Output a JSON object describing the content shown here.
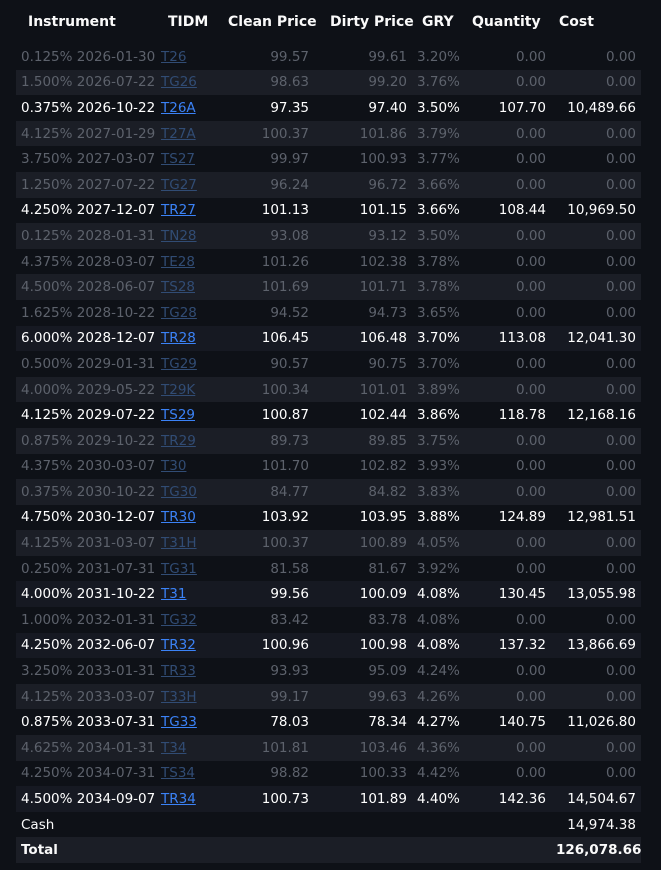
{
  "table": {
    "headers": {
      "instrument": "Instrument",
      "tidm": "TIDM",
      "clean_price": "Clean Price",
      "dirty_price": "Dirty Price",
      "gry": "GRY",
      "quantity": "Quantity",
      "cost": "Cost"
    },
    "rows": [
      {
        "instrument": "0.125% 2026-01-30",
        "tidm": "T26",
        "clean": "99.57",
        "dirty": "99.61",
        "gry": "3.20%",
        "qty": "0.00",
        "cost": "0.00",
        "held": false
      },
      {
        "instrument": "1.500% 2026-07-22",
        "tidm": "TG26",
        "clean": "98.63",
        "dirty": "99.20",
        "gry": "3.76%",
        "qty": "0.00",
        "cost": "0.00",
        "held": false
      },
      {
        "instrument": "0.375% 2026-10-22",
        "tidm": "T26A",
        "clean": "97.35",
        "dirty": "97.40",
        "gry": "3.50%",
        "qty": "107.70",
        "cost": "10,489.66",
        "held": true
      },
      {
        "instrument": "4.125% 2027-01-29",
        "tidm": "T27A",
        "clean": "100.37",
        "dirty": "101.86",
        "gry": "3.79%",
        "qty": "0.00",
        "cost": "0.00",
        "held": false
      },
      {
        "instrument": "3.750% 2027-03-07",
        "tidm": "TS27",
        "clean": "99.97",
        "dirty": "100.93",
        "gry": "3.77%",
        "qty": "0.00",
        "cost": "0.00",
        "held": false
      },
      {
        "instrument": "1.250% 2027-07-22",
        "tidm": "TG27",
        "clean": "96.24",
        "dirty": "96.72",
        "gry": "3.66%",
        "qty": "0.00",
        "cost": "0.00",
        "held": false
      },
      {
        "instrument": "4.250% 2027-12-07",
        "tidm": "TR27",
        "clean": "101.13",
        "dirty": "101.15",
        "gry": "3.66%",
        "qty": "108.44",
        "cost": "10,969.50",
        "held": true
      },
      {
        "instrument": "0.125% 2028-01-31",
        "tidm": "TN28",
        "clean": "93.08",
        "dirty": "93.12",
        "gry": "3.50%",
        "qty": "0.00",
        "cost": "0.00",
        "held": false
      },
      {
        "instrument": "4.375% 2028-03-07",
        "tidm": "TE28",
        "clean": "101.26",
        "dirty": "102.38",
        "gry": "3.78%",
        "qty": "0.00",
        "cost": "0.00",
        "held": false
      },
      {
        "instrument": "4.500% 2028-06-07",
        "tidm": "TS28",
        "clean": "101.69",
        "dirty": "101.71",
        "gry": "3.78%",
        "qty": "0.00",
        "cost": "0.00",
        "held": false
      },
      {
        "instrument": "1.625% 2028-10-22",
        "tidm": "TG28",
        "clean": "94.52",
        "dirty": "94.73",
        "gry": "3.65%",
        "qty": "0.00",
        "cost": "0.00",
        "held": false
      },
      {
        "instrument": "6.000% 2028-12-07",
        "tidm": "TR28",
        "clean": "106.45",
        "dirty": "106.48",
        "gry": "3.70%",
        "qty": "113.08",
        "cost": "12,041.30",
        "held": true
      },
      {
        "instrument": "0.500% 2029-01-31",
        "tidm": "TG29",
        "clean": "90.57",
        "dirty": "90.75",
        "gry": "3.70%",
        "qty": "0.00",
        "cost": "0.00",
        "held": false
      },
      {
        "instrument": "4.000% 2029-05-22",
        "tidm": "T29K",
        "clean": "100.34",
        "dirty": "101.01",
        "gry": "3.89%",
        "qty": "0.00",
        "cost": "0.00",
        "held": false
      },
      {
        "instrument": "4.125% 2029-07-22",
        "tidm": "TS29",
        "clean": "100.87",
        "dirty": "102.44",
        "gry": "3.86%",
        "qty": "118.78",
        "cost": "12,168.16",
        "held": true
      },
      {
        "instrument": "0.875% 2029-10-22",
        "tidm": "TR29",
        "clean": "89.73",
        "dirty": "89.85",
        "gry": "3.75%",
        "qty": "0.00",
        "cost": "0.00",
        "held": false
      },
      {
        "instrument": "4.375% 2030-03-07",
        "tidm": "T30",
        "clean": "101.70",
        "dirty": "102.82",
        "gry": "3.93%",
        "qty": "0.00",
        "cost": "0.00",
        "held": false
      },
      {
        "instrument": "0.375% 2030-10-22",
        "tidm": "TG30",
        "clean": "84.77",
        "dirty": "84.82",
        "gry": "3.83%",
        "qty": "0.00",
        "cost": "0.00",
        "held": false
      },
      {
        "instrument": "4.750% 2030-12-07",
        "tidm": "TR30",
        "clean": "103.92",
        "dirty": "103.95",
        "gry": "3.88%",
        "qty": "124.89",
        "cost": "12,981.51",
        "held": true
      },
      {
        "instrument": "4.125% 2031-03-07",
        "tidm": "T31H",
        "clean": "100.37",
        "dirty": "100.89",
        "gry": "4.05%",
        "qty": "0.00",
        "cost": "0.00",
        "held": false
      },
      {
        "instrument": "0.250% 2031-07-31",
        "tidm": "TG31",
        "clean": "81.58",
        "dirty": "81.67",
        "gry": "3.92%",
        "qty": "0.00",
        "cost": "0.00",
        "held": false
      },
      {
        "instrument": "4.000% 2031-10-22",
        "tidm": "T31",
        "clean": "99.56",
        "dirty": "100.09",
        "gry": "4.08%",
        "qty": "130.45",
        "cost": "13,055.98",
        "held": true
      },
      {
        "instrument": "1.000% 2032-01-31",
        "tidm": "TG32",
        "clean": "83.42",
        "dirty": "83.78",
        "gry": "4.08%",
        "qty": "0.00",
        "cost": "0.00",
        "held": false
      },
      {
        "instrument": "4.250% 2032-06-07",
        "tidm": "TR32",
        "clean": "100.96",
        "dirty": "100.98",
        "gry": "4.08%",
        "qty": "137.32",
        "cost": "13,866.69",
        "held": true
      },
      {
        "instrument": "3.250% 2033-01-31",
        "tidm": "TR33",
        "clean": "93.93",
        "dirty": "95.09",
        "gry": "4.24%",
        "qty": "0.00",
        "cost": "0.00",
        "held": false
      },
      {
        "instrument": "4.125% 2033-03-07",
        "tidm": "T33H",
        "clean": "99.17",
        "dirty": "99.63",
        "gry": "4.26%",
        "qty": "0.00",
        "cost": "0.00",
        "held": false
      },
      {
        "instrument": "0.875% 2033-07-31",
        "tidm": "TG33",
        "clean": "78.03",
        "dirty": "78.34",
        "gry": "4.27%",
        "qty": "140.75",
        "cost": "11,026.80",
        "held": true
      },
      {
        "instrument": "4.625% 2034-01-31",
        "tidm": "T34",
        "clean": "101.81",
        "dirty": "103.46",
        "gry": "4.36%",
        "qty": "0.00",
        "cost": "0.00",
        "held": false
      },
      {
        "instrument": "4.250% 2034-07-31",
        "tidm": "TS34",
        "clean": "98.82",
        "dirty": "100.33",
        "gry": "4.42%",
        "qty": "0.00",
        "cost": "0.00",
        "held": false
      },
      {
        "instrument": "4.500% 2034-09-07",
        "tidm": "TR34",
        "clean": "100.73",
        "dirty": "101.89",
        "gry": "4.40%",
        "qty": "142.36",
        "cost": "14,504.67",
        "held": true
      }
    ],
    "cash": {
      "label": "Cash",
      "cost": "14,974.38"
    },
    "total": {
      "label": "Total",
      "cost": "126,078.66"
    }
  },
  "colors": {
    "background": "#0e1117",
    "link": "#3b82f6",
    "dim_text": "#5d626c"
  }
}
